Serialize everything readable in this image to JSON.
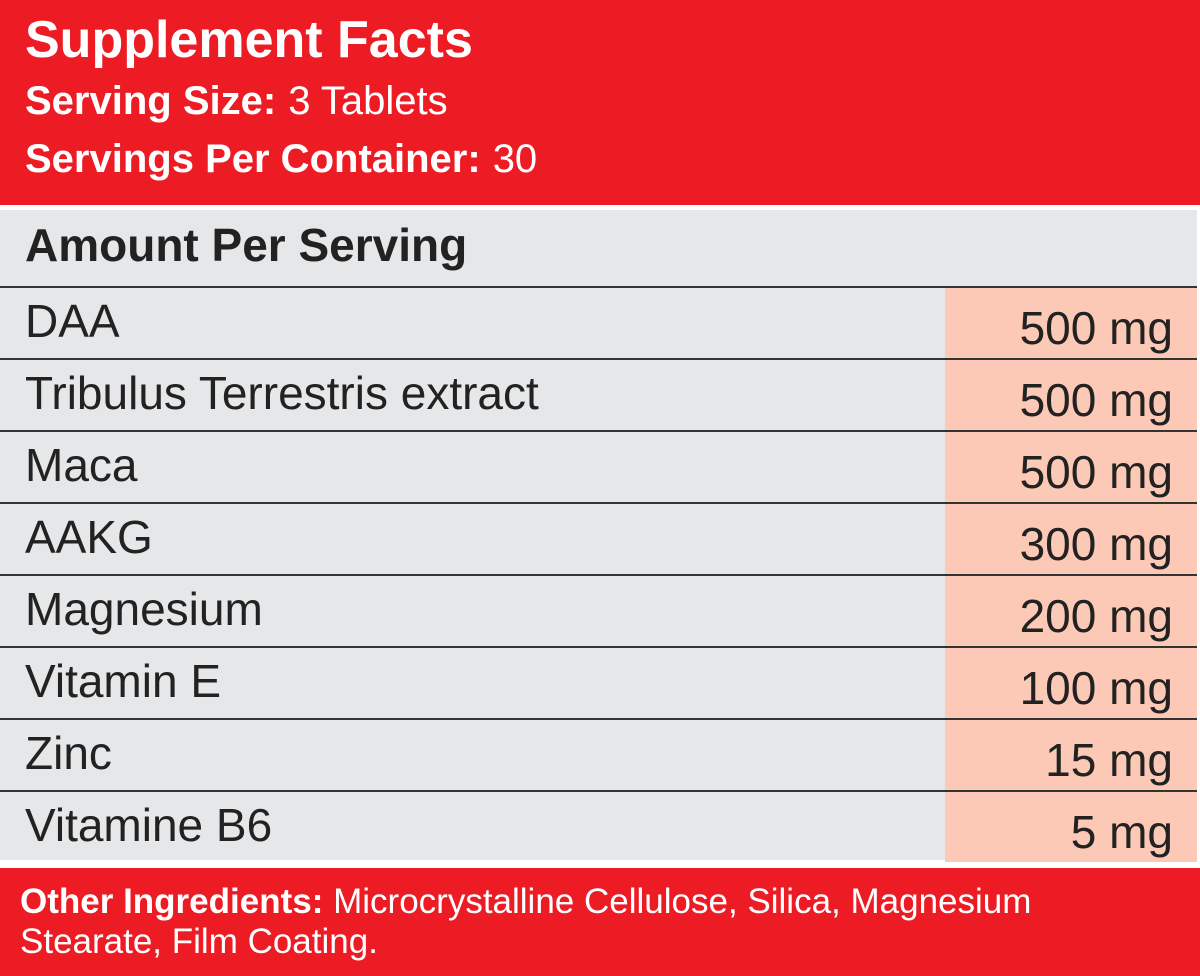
{
  "header": {
    "title": "Supplement Facts",
    "serving_size_label": "Serving Size:",
    "serving_size": "3 Tablets",
    "servings_label": "Servings Per Container:",
    "servings": "30"
  },
  "table": {
    "heading": "Amount Per Serving",
    "rows": [
      [
        "DAA",
        "500 mg"
      ],
      [
        "Tribulus Terrestris extract",
        "500 mg"
      ],
      [
        "Maca",
        "500 mg"
      ],
      [
        "AAKG",
        "300 mg"
      ],
      [
        "Magnesium",
        "200 mg"
      ],
      [
        "Vitamin E",
        "100 mg"
      ],
      [
        "Zinc",
        "15 mg"
      ],
      [
        "Vitamine B6",
        "5 mg"
      ]
    ]
  },
  "footer": {
    "label": "Other Ingredients:",
    "text": "Microcrystalline Cellulose, Silica, Magnesium Stearate, Film Coating."
  }
}
